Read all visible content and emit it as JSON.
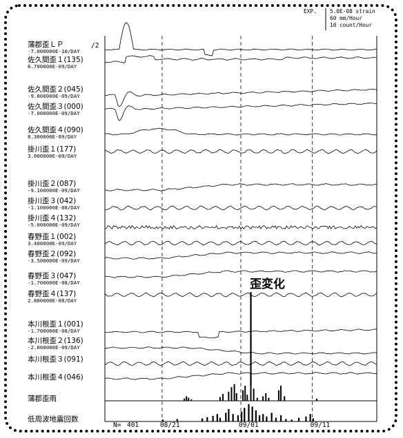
{
  "chart_data": {
    "type": "line",
    "legend": {
      "exp_label": "EXP.",
      "lines": [
        "5.0E-08 strain",
        "60 mm/Hour",
        "10 count/Hour"
      ]
    },
    "scale_mark": "/2",
    "x_ticks": [
      {
        "label": "08/21",
        "day": 8
      },
      {
        "label": "09/01",
        "day": 19
      },
      {
        "label": "09/11",
        "day": 29
      }
    ],
    "x_range_days": [
      0,
      38
    ],
    "n_label": "N=",
    "n_value": "401",
    "annotation": {
      "text": "歪変化",
      "day": 20.4
    },
    "series": [
      {
        "name": "蒲郡歪ＬＰ",
        "rate": "-7.000000E-10/DAY",
        "shape": "spike"
      },
      {
        "name": "佐久間歪１(135)",
        "rate": "6.700000E-09/DAY",
        "shape": "step"
      },
      {
        "name": "佐久間歪２(045)",
        "rate": "-9.800000E-09/DAY",
        "shape": "transient"
      },
      {
        "name": "佐久間歪３(000)",
        "rate": "-7.000000E-09/DAY",
        "shape": "transient"
      },
      {
        "name": "佐久間歪４(090)",
        "rate": "8.300000E-09/DAY",
        "shape": "bump"
      },
      {
        "name": "掛川歪１(177)",
        "rate": "3.000000E-09/DAY",
        "shape": "wave"
      },
      {
        "name": "掛川歪２(087)",
        "rate": "-9.100000E-09/DAY",
        "shape": "rise"
      },
      {
        "name": "掛川歪３(042)",
        "rate": "-1.100000E-08/DAY",
        "shape": "wave"
      },
      {
        "name": "掛川歪４(132)",
        "rate": "-5.000000E-09/DAY",
        "shape": "noise"
      },
      {
        "name": "春野歪１(002)",
        "rate": "3.400000E-09/DAY",
        "shape": "wave"
      },
      {
        "name": "春野歪２(092)",
        "rate": "-3.500000E-09/DAY",
        "shape": "rise"
      },
      {
        "name": "春野歪３(047)",
        "rate": "-1.700000E-08/DAY",
        "shape": "rise"
      },
      {
        "name": "春野歪４(137)",
        "rate": "2.800000E-08/DAY",
        "shape": "wave"
      },
      {
        "name": "本川根歪１(001)",
        "rate": "-1.700000E-08/DAY",
        "shape": "dip"
      },
      {
        "name": "本川根歪２(136)",
        "rate": "-2.000000E-09/DAY",
        "shape": "drop"
      },
      {
        "name": "本川根歪３(091)",
        "rate": "",
        "shape": "wave"
      },
      {
        "name": "本川根歪４(046)",
        "rate": "",
        "shape": "rise"
      }
    ],
    "rain": {
      "name": "蒲郡歪雨",
      "events": [
        [
          11,
          3
        ],
        [
          11.3,
          6
        ],
        [
          11.6,
          4
        ],
        [
          12,
          2
        ],
        [
          16,
          5
        ],
        [
          16.4,
          9
        ],
        [
          17.2,
          12
        ],
        [
          17.6,
          18
        ],
        [
          18,
          22
        ],
        [
          18.3,
          10
        ],
        [
          19.2,
          14
        ],
        [
          19.5,
          20
        ],
        [
          19.8,
          8
        ],
        [
          20.3,
          26
        ],
        [
          20.7,
          16
        ],
        [
          21.2,
          4
        ],
        [
          22,
          6
        ],
        [
          22.4,
          10
        ],
        [
          22.8,
          4
        ],
        [
          24.2,
          14
        ],
        [
          24.5,
          20
        ],
        [
          25,
          6
        ],
        [
          29.5,
          3
        ]
      ]
    },
    "lfe": {
      "name": "低周波地震回数",
      "events": [
        [
          8,
          3
        ],
        [
          10,
          4
        ],
        [
          13.5,
          5
        ],
        [
          14.2,
          7
        ],
        [
          15,
          9
        ],
        [
          15.6,
          12
        ],
        [
          16,
          6
        ],
        [
          16.8,
          14
        ],
        [
          17.2,
          20
        ],
        [
          17.8,
          12
        ],
        [
          18.5,
          10
        ],
        [
          19,
          16
        ],
        [
          19.4,
          22
        ],
        [
          20,
          28
        ],
        [
          20.5,
          24
        ],
        [
          21,
          18
        ],
        [
          21.5,
          10
        ],
        [
          22,
          12
        ],
        [
          22.5,
          8
        ],
        [
          23.2,
          14
        ],
        [
          23.8,
          6
        ],
        [
          24.5,
          10
        ],
        [
          25.2,
          4
        ],
        [
          26,
          3
        ],
        [
          27,
          6
        ],
        [
          28,
          8
        ],
        [
          28.6,
          12
        ],
        [
          29,
          5
        ]
      ]
    }
  }
}
